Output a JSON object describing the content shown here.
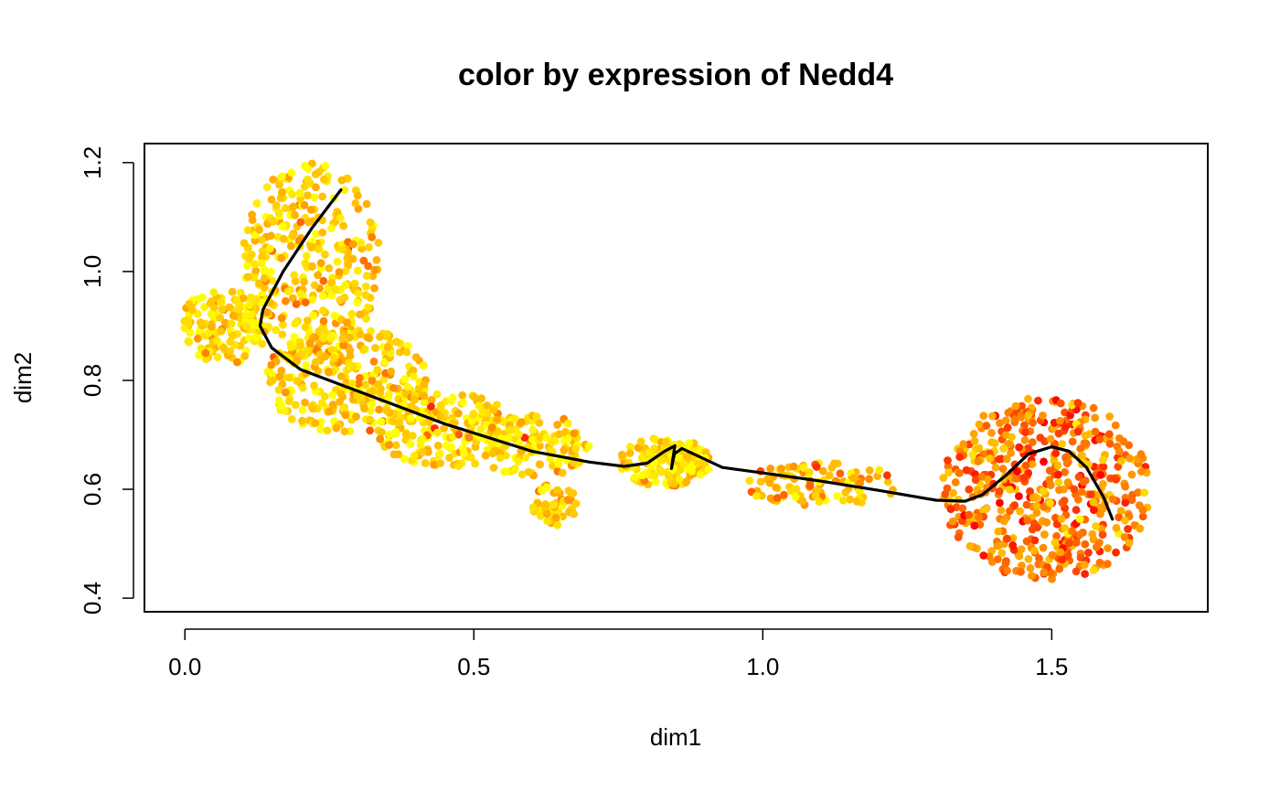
{
  "chart_data": {
    "type": "scatter",
    "title": "color by expression of Nedd4",
    "xlabel": "dim1",
    "ylabel": "dim2",
    "xlim": [
      -0.07,
      1.77
    ],
    "ylim": [
      0.375,
      1.235
    ],
    "xticks": [
      0.0,
      0.5,
      1.0,
      1.5
    ],
    "xtick_labels": [
      "0.0",
      "0.5",
      "1.0",
      "1.5"
    ],
    "yticks": [
      0.4,
      0.6,
      0.8,
      1.0,
      1.2
    ],
    "ytick_labels": [
      "0.4",
      "0.6",
      "0.8",
      "1.0",
      "1.2"
    ],
    "grid": false,
    "legend": "none",
    "color_scale": {
      "name": "heat",
      "low": "#FFFF00",
      "mid": "#FFA500",
      "high": "#FF0000"
    },
    "clusters": [
      {
        "label": "top-left lobe",
        "cx": 0.22,
        "cy": 1.02,
        "rx": 0.12,
        "ry": 0.18,
        "n": 330,
        "expr_mean": 0.25
      },
      {
        "label": "left edge",
        "cx": 0.07,
        "cy": 0.9,
        "rx": 0.08,
        "ry": 0.07,
        "n": 150,
        "expr_mean": 0.2
      },
      {
        "label": "upper arm",
        "cx": 0.28,
        "cy": 0.8,
        "rx": 0.14,
        "ry": 0.1,
        "n": 280,
        "expr_mean": 0.25
      },
      {
        "label": "arm mid",
        "cx": 0.45,
        "cy": 0.71,
        "rx": 0.12,
        "ry": 0.07,
        "n": 200,
        "expr_mean": 0.22
      },
      {
        "label": "bridge left",
        "cx": 0.6,
        "cy": 0.68,
        "rx": 0.1,
        "ry": 0.06,
        "n": 120,
        "expr_mean": 0.2
      },
      {
        "label": "lower pocket",
        "cx": 0.64,
        "cy": 0.57,
        "rx": 0.04,
        "ry": 0.04,
        "n": 50,
        "expr_mean": 0.3
      },
      {
        "label": "bridge mid",
        "cx": 0.83,
        "cy": 0.65,
        "rx": 0.08,
        "ry": 0.045,
        "n": 150,
        "expr_mean": 0.15
      },
      {
        "label": "bridge right",
        "cx": 1.1,
        "cy": 0.61,
        "rx": 0.14,
        "ry": 0.04,
        "n": 100,
        "expr_mean": 0.35
      },
      {
        "label": "right lobe",
        "cx": 1.49,
        "cy": 0.6,
        "rx": 0.18,
        "ry": 0.17,
        "n": 520,
        "expr_mean": 0.62
      }
    ],
    "trajectory": {
      "color": "#000000",
      "points": [
        [
          0.27,
          1.15
        ],
        [
          0.22,
          1.08
        ],
        [
          0.17,
          1.0
        ],
        [
          0.135,
          0.93
        ],
        [
          0.13,
          0.9
        ],
        [
          0.15,
          0.86
        ],
        [
          0.2,
          0.82
        ],
        [
          0.3,
          0.78
        ],
        [
          0.45,
          0.72
        ],
        [
          0.6,
          0.67
        ],
        [
          0.7,
          0.65
        ],
        [
          0.76,
          0.642
        ],
        [
          0.8,
          0.648
        ],
        [
          0.83,
          0.67
        ],
        [
          0.848,
          0.68
        ],
        [
          0.845,
          0.66
        ],
        [
          0.842,
          0.638
        ],
        [
          0.847,
          0.665
        ],
        [
          0.86,
          0.675
        ],
        [
          0.9,
          0.655
        ],
        [
          0.93,
          0.64
        ],
        [
          1.0,
          0.63
        ],
        [
          1.1,
          0.615
        ],
        [
          1.2,
          0.598
        ],
        [
          1.3,
          0.58
        ],
        [
          1.35,
          0.578
        ],
        [
          1.38,
          0.59
        ],
        [
          1.42,
          0.625
        ],
        [
          1.46,
          0.665
        ],
        [
          1.5,
          0.678
        ],
        [
          1.53,
          0.67
        ],
        [
          1.56,
          0.64
        ],
        [
          1.59,
          0.585
        ],
        [
          1.605,
          0.545
        ]
      ]
    }
  }
}
